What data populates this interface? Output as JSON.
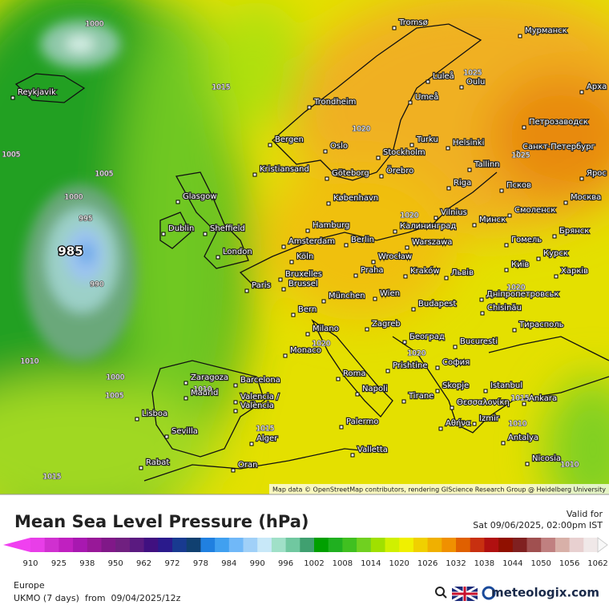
{
  "map": {
    "attribution": "Map data © OpenStreetMap contributors, rendering GIScience Research Group @ Heidelberg University",
    "cities": [
      "Tromsø",
      "Мурманск",
      "Reykjavik",
      "Luleå",
      "Oulu",
      "Umeå",
      "Trondheim",
      "Арха",
      "Петрозаводск",
      "Bergen",
      "Oslo",
      "Turku",
      "Helsinki",
      "Санкт-Петербург",
      "Stockholm",
      "Kristiansand",
      "Göteborg",
      "Örebro",
      "Tallinn",
      "Glasgow",
      "København",
      "Riga",
      "Псков",
      "Ярос",
      "Москва",
      "Dublin",
      "Sheffield",
      "Hamburg",
      "Vilnius",
      "Калининград",
      "Минск",
      "Смоленск",
      "Брянск",
      "Amsterdam",
      "Berlin",
      "Warszawa",
      "Гомель",
      "London",
      "Köln",
      "Wrocław",
      "Курск",
      "Bruxelles",
      "Brussel",
      "Praha",
      "Kraków",
      "Львів",
      "Київ",
      "Харків",
      "Paris",
      "München",
      "Wien",
      "Дніпропетровськ",
      "Bern",
      "Budapest",
      "Chisinău",
      "Milano",
      "Zagreb",
      "Тирасполь",
      "Београд",
      "Monaco",
      "Bucuresti",
      "Prishtine",
      "София",
      "Zaragoza",
      "Barcelona",
      "Madrid",
      "Roma",
      "Skopje",
      "Istanbul",
      "Napoli",
      "Tirane",
      "Θεσσαλονίκη",
      "Ankara",
      "Valencia /",
      "València",
      "Lisboa",
      "Izmir",
      "Αθήνα",
      "Palermo",
      "Sevilla",
      "Alger",
      "Antalya",
      "Valletta",
      "Rabat",
      "Oran",
      "Nicosia"
    ],
    "isobar_labels": [
      1000,
      1015,
      1020,
      1025,
      1025,
      1005,
      1005,
      1000,
      995,
      985,
      990,
      1000,
      1005,
      1010,
      1010,
      1015,
      1015,
      1020,
      1020,
      1020,
      1020,
      1015,
      1010,
      1010
    ]
  },
  "legend": {
    "title": "Mean Sea Level Pressure (hPa)",
    "ticks": [
      910,
      925,
      938,
      950,
      962,
      972,
      978,
      984,
      990,
      996,
      1002,
      1008,
      1014,
      1020,
      1026,
      1032,
      1038,
      1044,
      1050,
      1056,
      1062
    ],
    "colors": [
      "#e83ee8",
      "#d030d0",
      "#c020c0",
      "#a818b0",
      "#981898",
      "#801888",
      "#702080",
      "#5a1a80",
      "#401080",
      "#2a1a8c",
      "#183a90",
      "#104070",
      "#2080e0",
      "#40a0f0",
      "#70b8f8",
      "#a0d0f8",
      "#c8e8f8",
      "#a0e0c8",
      "#70c8a0",
      "#40a070",
      "#00a000",
      "#20b020",
      "#40c020",
      "#70d020",
      "#a0e000",
      "#d0f000",
      "#f0f000",
      "#f0d000",
      "#f0b000",
      "#f09000",
      "#e06000",
      "#c83010",
      "#b01010",
      "#901000",
      "#802020",
      "#a05050",
      "#c08080",
      "#d8b0a8",
      "#e8d0d0",
      "#f0e8e8"
    ],
    "low_color": "#f040f0",
    "high_color": "#f8f8f8"
  },
  "valid": {
    "label": "Valid for",
    "time": "Sat 09/06/2025, 02:00pm IST"
  },
  "region": "Europe",
  "model": "UKMO (7 days)  from  09/04/2025/12z",
  "brand": "meteologix.com"
}
